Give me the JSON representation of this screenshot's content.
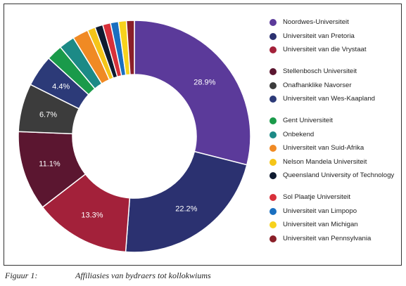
{
  "chart_data": {
    "type": "pie",
    "title": "",
    "legend_position": "right",
    "donut": true,
    "slices": [
      {
        "label": "Noordwes-Universiteit",
        "value": 28.9,
        "display": "28.9%",
        "color": "#5b3a9a"
      },
      {
        "label": "Universiteit van Pretoria",
        "value": 22.2,
        "display": "22.2%",
        "color": "#2b3170"
      },
      {
        "label": "Universiteit van die Vrystaat",
        "value": 13.3,
        "display": "13.3%",
        "color": "#a3213a"
      },
      {
        "label": "Stellenbosch Universiteit",
        "value": 11.1,
        "display": "11.1%",
        "color": "#5b1630"
      },
      {
        "label": "Onafhanklike Navorser",
        "value": 6.7,
        "display": "6.7%",
        "color": "#3c3c3c"
      },
      {
        "label": "Universiteit van Wes-Kaapland",
        "value": 4.4,
        "display": "4.4%",
        "color": "#2c3a78"
      },
      {
        "label": "Gent Universiteit",
        "value": 2.2,
        "display": "",
        "color": "#1a9a4a"
      },
      {
        "label": "Onbekend",
        "value": 2.2,
        "display": "",
        "color": "#1c8a86"
      },
      {
        "label": "Universiteit van Suid-Afrika",
        "value": 2.2,
        "display": "",
        "color": "#f08a24"
      },
      {
        "label": "Nelson Mandela Universiteit",
        "value": 1.1,
        "display": "",
        "color": "#f5c518"
      },
      {
        "label": "Queensland University of Technology",
        "value": 1.1,
        "display": "",
        "color": "#0f1a30"
      },
      {
        "label": "Sol Plaatje Universiteit",
        "value": 1.1,
        "display": "",
        "color": "#d8303a"
      },
      {
        "label": "Universiteit van Limpopo",
        "value": 1.1,
        "display": "",
        "color": "#1a6fc0"
      },
      {
        "label": "Universiteit van Michigan",
        "value": 1.1,
        "display": "",
        "color": "#f7d21c"
      },
      {
        "label": "Universiteit van Pennsylvania",
        "value": 1.1,
        "display": "",
        "color": "#8a1f28"
      }
    ]
  },
  "caption": {
    "number": "Figuur 1:",
    "text": "Affiliasies van bydraers tot kollokwiums"
  }
}
